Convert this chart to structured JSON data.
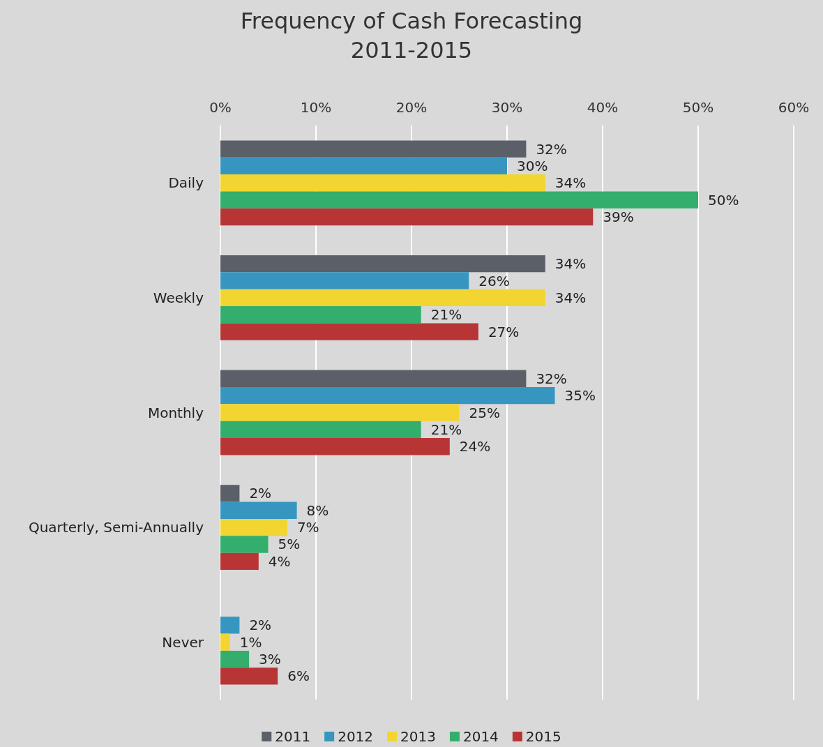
{
  "chart_data": {
    "type": "bar",
    "orientation": "horizontal",
    "title": "Frequency of Cash Forecasting\n2011-2015",
    "categories": [
      "Daily",
      "Weekly",
      "Monthly",
      "Quarterly, Semi-Annually",
      "Never"
    ],
    "series": [
      {
        "name": "2011",
        "color": "#5b5f67",
        "values": [
          32,
          34,
          32,
          2,
          null
        ],
        "value_labels": [
          "32%",
          "34%",
          "32%",
          "2%",
          null
        ]
      },
      {
        "name": "2012",
        "color": "#3696c0",
        "values": [
          30,
          26,
          35,
          8,
          2
        ],
        "value_labels": [
          "30%",
          "26%",
          "35%",
          "8%",
          "2%"
        ]
      },
      {
        "name": "2013",
        "color": "#f2d530",
        "values": [
          34,
          34,
          25,
          7,
          1
        ],
        "value_labels": [
          "34%",
          "34%",
          "25%",
          "7%",
          "1%"
        ]
      },
      {
        "name": "2014",
        "color": "#33ae6d",
        "values": [
          50,
          21,
          21,
          5,
          3
        ],
        "value_labels": [
          "50%",
          "21%",
          "21%",
          "5%",
          "3%"
        ]
      },
      {
        "name": "2015",
        "color": "#b83536",
        "values": [
          39,
          27,
          24,
          4,
          6
        ],
        "value_labels": [
          "39%",
          "27%",
          "24%",
          "4%",
          "6%"
        ]
      }
    ],
    "xlim": [
      0,
      60
    ],
    "xticks": [
      {
        "value": 0,
        "label": "0%"
      },
      {
        "value": 10,
        "label": "10%"
      },
      {
        "value": 20,
        "label": "20%"
      },
      {
        "value": 30,
        "label": "30%"
      },
      {
        "value": 40,
        "label": "40%"
      },
      {
        "value": 50,
        "label": "50%"
      },
      {
        "value": 60,
        "label": "60%"
      }
    ],
    "grid": "x",
    "legend": "bottom"
  }
}
